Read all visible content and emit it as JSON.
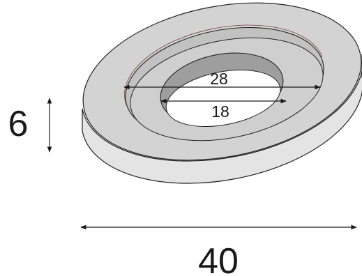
{
  "dimensions": {
    "height": "6",
    "outer_diameter": "40",
    "recess_diameter": "28",
    "bore_diameter": "18"
  }
}
